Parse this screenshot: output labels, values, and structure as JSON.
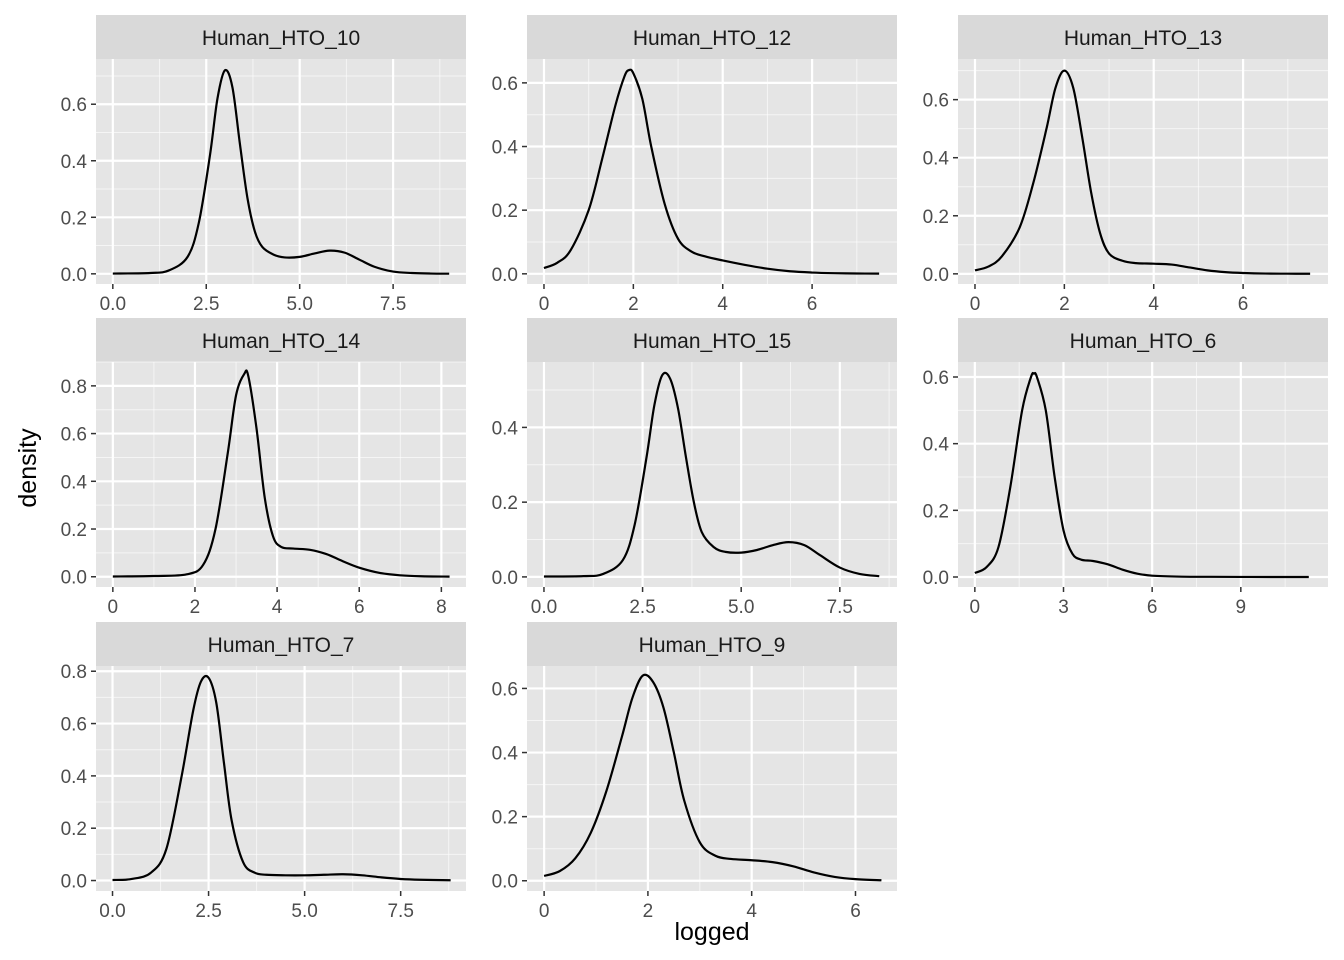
{
  "chart_data": {
    "type": "line",
    "subtype": "density",
    "layout": "facet_wrap",
    "xlabel": "logged",
    "ylabel": "density",
    "colors": {
      "panel_background": "#e5e5e5",
      "strip_background": "#d9d9d9",
      "grid": "#ffffff",
      "line": "#000000",
      "tick_text": "#4d4d4d"
    },
    "panels": [
      {
        "title": "Human_HTO_10",
        "xlim": [
          -0.45,
          9.45
        ],
        "ylim": [
          -0.036,
          0.76
        ],
        "xticks": [
          0,
          2.5,
          5,
          7.5
        ],
        "xtick_labels": [
          "0.0",
          "2.5",
          "5.0",
          "7.5"
        ],
        "yticks": [
          0,
          0.2,
          0.4,
          0.6
        ],
        "ytick_labels": [
          "0.0",
          "0.2",
          "0.4",
          "0.6"
        ],
        "x": [
          0,
          1,
          1.5,
          2,
          2.3,
          2.6,
          2.8,
          3.0,
          3.2,
          3.4,
          3.6,
          3.8,
          4.0,
          4.3,
          4.6,
          5.0,
          5.4,
          5.8,
          6.2,
          6.6,
          7.0,
          7.5,
          8.0,
          8.5,
          9.0
        ],
        "y": [
          0.001,
          0.003,
          0.012,
          0.06,
          0.18,
          0.42,
          0.62,
          0.72,
          0.66,
          0.46,
          0.27,
          0.15,
          0.095,
          0.068,
          0.058,
          0.06,
          0.072,
          0.082,
          0.075,
          0.05,
          0.025,
          0.008,
          0.003,
          0.001,
          0.0005
        ]
      },
      {
        "title": "Human_HTO_12",
        "xlim": [
          -0.38,
          7.9
        ],
        "ylim": [
          -0.032,
          0.675
        ],
        "xticks": [
          0,
          2,
          4,
          6
        ],
        "xtick_labels": [
          "0",
          "2",
          "4",
          "6"
        ],
        "yticks": [
          0,
          0.2,
          0.4,
          0.6
        ],
        "ytick_labels": [
          "0.0",
          "0.2",
          "0.4",
          "0.6"
        ],
        "x": [
          0,
          0.3,
          0.6,
          1.0,
          1.3,
          1.6,
          1.8,
          1.9,
          2.0,
          2.2,
          2.4,
          2.7,
          3.0,
          3.3,
          3.6,
          4.0,
          4.5,
          5.0,
          5.5,
          6.0,
          6.5,
          7.0,
          7.5
        ],
        "y": [
          0.018,
          0.035,
          0.075,
          0.2,
          0.36,
          0.53,
          0.62,
          0.64,
          0.63,
          0.55,
          0.4,
          0.22,
          0.11,
          0.07,
          0.055,
          0.042,
          0.028,
          0.016,
          0.008,
          0.004,
          0.002,
          0.001,
          0.0005
        ]
      },
      {
        "title": "Human_HTO_13",
        "xlim": [
          -0.38,
          7.9
        ],
        "ylim": [
          -0.035,
          0.74
        ],
        "xticks": [
          0,
          2,
          4,
          6
        ],
        "xtick_labels": [
          "0",
          "2",
          "4",
          "6"
        ],
        "yticks": [
          0,
          0.2,
          0.4,
          0.6
        ],
        "ytick_labels": [
          "0.0",
          "0.2",
          "0.4",
          "0.6"
        ],
        "x": [
          0,
          0.3,
          0.6,
          1.0,
          1.3,
          1.6,
          1.8,
          2.0,
          2.2,
          2.4,
          2.6,
          2.8,
          3.0,
          3.3,
          3.6,
          4.0,
          4.4,
          4.8,
          5.2,
          5.6,
          6.0,
          6.5,
          7.0,
          7.5
        ],
        "y": [
          0.012,
          0.025,
          0.06,
          0.16,
          0.31,
          0.5,
          0.64,
          0.7,
          0.64,
          0.47,
          0.28,
          0.14,
          0.07,
          0.045,
          0.037,
          0.035,
          0.032,
          0.022,
          0.012,
          0.006,
          0.003,
          0.001,
          0.0005,
          0.0002
        ]
      },
      {
        "title": "Human_HTO_14",
        "xlim": [
          -0.41,
          8.6
        ],
        "ylim": [
          -0.043,
          0.9
        ],
        "xticks": [
          0,
          2,
          4,
          6,
          8
        ],
        "xtick_labels": [
          "0",
          "2",
          "4",
          "6",
          "8"
        ],
        "yticks": [
          0,
          0.2,
          0.4,
          0.6,
          0.8
        ],
        "ytick_labels": [
          "0.0",
          "0.2",
          "0.4",
          "0.6",
          "0.8"
        ],
        "x": [
          0,
          1,
          1.8,
          2.2,
          2.5,
          2.8,
          3.0,
          3.2,
          3.3,
          3.5,
          3.7,
          3.9,
          4.1,
          4.4,
          4.8,
          5.2,
          5.6,
          6.0,
          6.5,
          7.0,
          7.5,
          8.2
        ],
        "y": [
          0.001,
          0.003,
          0.01,
          0.05,
          0.2,
          0.52,
          0.76,
          0.85,
          0.84,
          0.62,
          0.33,
          0.17,
          0.125,
          0.118,
          0.113,
          0.095,
          0.065,
          0.038,
          0.016,
          0.006,
          0.002,
          0.0005
        ]
      },
      {
        "title": "Human_HTO_15",
        "xlim": [
          -0.43,
          8.95
        ],
        "ylim": [
          -0.027,
          0.575
        ],
        "xticks": [
          0,
          2.5,
          5,
          7.5
        ],
        "xtick_labels": [
          "0.0",
          "2.5",
          "5.0",
          "7.5"
        ],
        "yticks": [
          0,
          0.2,
          0.4
        ],
        "ytick_labels": [
          "0.0",
          "0.2",
          "0.4"
        ],
        "x": [
          0,
          1,
          1.5,
          2.0,
          2.3,
          2.6,
          2.8,
          3.0,
          3.2,
          3.4,
          3.6,
          3.8,
          4.0,
          4.3,
          4.6,
          5.0,
          5.4,
          5.8,
          6.2,
          6.6,
          7.0,
          7.5,
          8.0,
          8.5
        ],
        "y": [
          0.001,
          0.002,
          0.008,
          0.045,
          0.14,
          0.32,
          0.46,
          0.54,
          0.53,
          0.45,
          0.32,
          0.2,
          0.12,
          0.08,
          0.067,
          0.065,
          0.072,
          0.085,
          0.093,
          0.085,
          0.058,
          0.025,
          0.008,
          0.002
        ]
      },
      {
        "title": "Human_HTO_6",
        "xlim": [
          -0.57,
          11.95
        ],
        "ylim": [
          -0.03,
          0.645
        ],
        "xticks": [
          0,
          3,
          6,
          9
        ],
        "xtick_labels": [
          "0",
          "3",
          "6",
          "9"
        ],
        "yticks": [
          0,
          0.2,
          0.4,
          0.6
        ],
        "ytick_labels": [
          "0.0",
          "0.2",
          "0.4",
          "0.6"
        ],
        "x": [
          0,
          0.4,
          0.8,
          1.2,
          1.6,
          1.9,
          2.0,
          2.1,
          2.4,
          2.7,
          3.0,
          3.3,
          3.6,
          4.0,
          4.5,
          5.0,
          5.5,
          6.0,
          7.0,
          8.0,
          9.0,
          10.0,
          11.3
        ],
        "y": [
          0.012,
          0.03,
          0.09,
          0.27,
          0.5,
          0.6,
          0.61,
          0.6,
          0.5,
          0.3,
          0.14,
          0.07,
          0.052,
          0.048,
          0.038,
          0.022,
          0.01,
          0.004,
          0.001,
          0.0005,
          0.0002,
          0.0001,
          0.0001
        ]
      },
      {
        "title": "Human_HTO_7",
        "xlim": [
          -0.43,
          9.2
        ],
        "ylim": [
          -0.04,
          0.82
        ],
        "xticks": [
          0,
          2.5,
          5,
          7.5
        ],
        "xtick_labels": [
          "0.0",
          "2.5",
          "5.0",
          "7.5"
        ],
        "yticks": [
          0,
          0.2,
          0.4,
          0.6,
          0.8
        ],
        "ytick_labels": [
          "0.0",
          "0.2",
          "0.4",
          "0.6",
          "0.8"
        ],
        "x": [
          0,
          0.5,
          1.0,
          1.4,
          1.8,
          2.1,
          2.3,
          2.5,
          2.7,
          2.9,
          3.1,
          3.4,
          3.7,
          4.0,
          4.5,
          5.0,
          5.5,
          6.0,
          6.5,
          7.0,
          7.5,
          8.0,
          8.8
        ],
        "y": [
          0.002,
          0.006,
          0.03,
          0.12,
          0.4,
          0.65,
          0.76,
          0.775,
          0.68,
          0.45,
          0.23,
          0.07,
          0.03,
          0.022,
          0.02,
          0.02,
          0.022,
          0.024,
          0.02,
          0.012,
          0.006,
          0.003,
          0.001
        ]
      },
      {
        "title": "Human_HTO_9",
        "xlim": [
          -0.33,
          6.8
        ],
        "ylim": [
          -0.032,
          0.67
        ],
        "xticks": [
          0,
          2,
          4,
          6
        ],
        "xtick_labels": [
          "0",
          "2",
          "4",
          "6"
        ],
        "yticks": [
          0,
          0.2,
          0.4,
          0.6
        ],
        "ytick_labels": [
          "0.0",
          "0.2",
          "0.4",
          "0.6"
        ],
        "x": [
          0,
          0.3,
          0.6,
          0.9,
          1.2,
          1.5,
          1.7,
          1.9,
          2.1,
          2.3,
          2.5,
          2.7,
          3.0,
          3.3,
          3.6,
          4.0,
          4.4,
          4.8,
          5.2,
          5.6,
          6.0,
          6.5
        ],
        "y": [
          0.015,
          0.03,
          0.07,
          0.15,
          0.28,
          0.45,
          0.57,
          0.64,
          0.62,
          0.54,
          0.4,
          0.25,
          0.12,
          0.078,
          0.068,
          0.064,
          0.058,
          0.045,
          0.026,
          0.012,
          0.005,
          0.0015
        ]
      }
    ]
  }
}
